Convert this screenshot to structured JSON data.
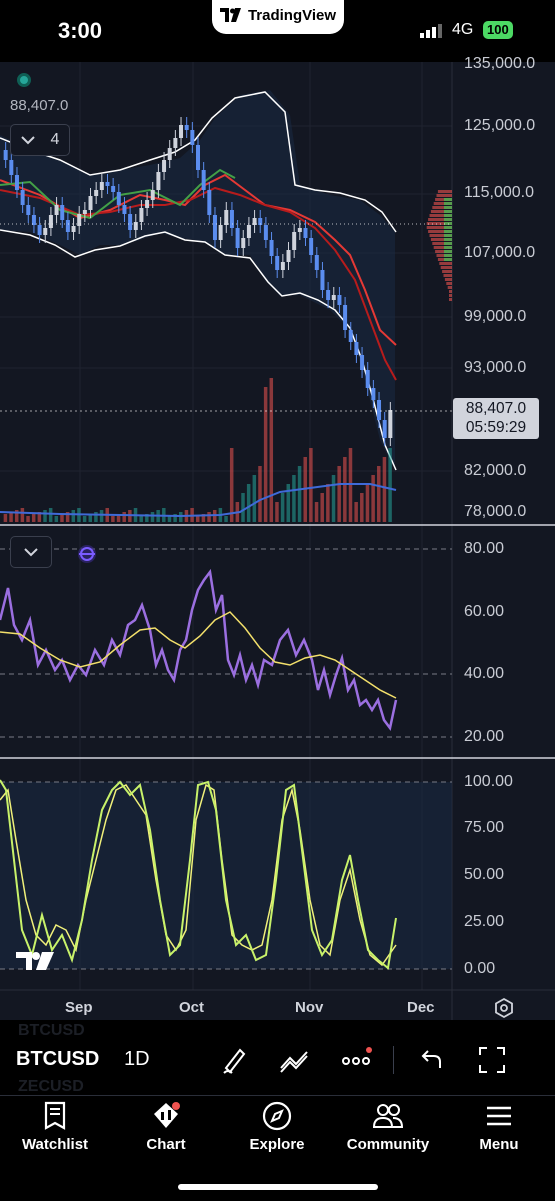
{
  "status_bar": {
    "time": "3:00",
    "network": "4G",
    "battery": "100"
  },
  "tv_badge": {
    "label": "TradingView"
  },
  "price_chart": {
    "last_price": "88,407.0",
    "current_price": "88,407.0",
    "countdown": "05:59:29",
    "collapse_count": "4",
    "price_axis": [
      "135,000.0",
      "125,000.0",
      "115,000.0",
      "107,000.0",
      "99,000.0",
      "93,000.0",
      "82,000.0",
      "78,000.0"
    ]
  },
  "rsi_panel": {
    "axis": [
      "80.00",
      "60.00",
      "40.00",
      "20.00"
    ]
  },
  "stoch_panel": {
    "axis": [
      "100.00",
      "75.00",
      "50.00",
      "25.00",
      "0.00"
    ]
  },
  "time_axis": [
    "Sep",
    "Oct",
    "Nov",
    "Dec"
  ],
  "toolbar": {
    "symbol": "BTCUSD",
    "ghost_above": "BTCUSD",
    "ghost_below": "ZECUSD",
    "interval": "1D"
  },
  "bottom_nav": [
    {
      "label": "Watchlist",
      "icon": "bookmark-icon"
    },
    {
      "label": "Chart",
      "icon": "chart-icon"
    },
    {
      "label": "Explore",
      "icon": "compass-icon"
    },
    {
      "label": "Community",
      "icon": "people-icon"
    },
    {
      "label": "Menu",
      "icon": "hamburger-icon"
    }
  ],
  "colors": {
    "up": "#26a69a",
    "down": "#5b8def",
    "rsi": "#9b6fe0",
    "rsi_ma": "#f3e06b",
    "stoch_k": "#c8f26a",
    "stoch_d": "#f0f07a",
    "accent": "#ef5350"
  }
}
